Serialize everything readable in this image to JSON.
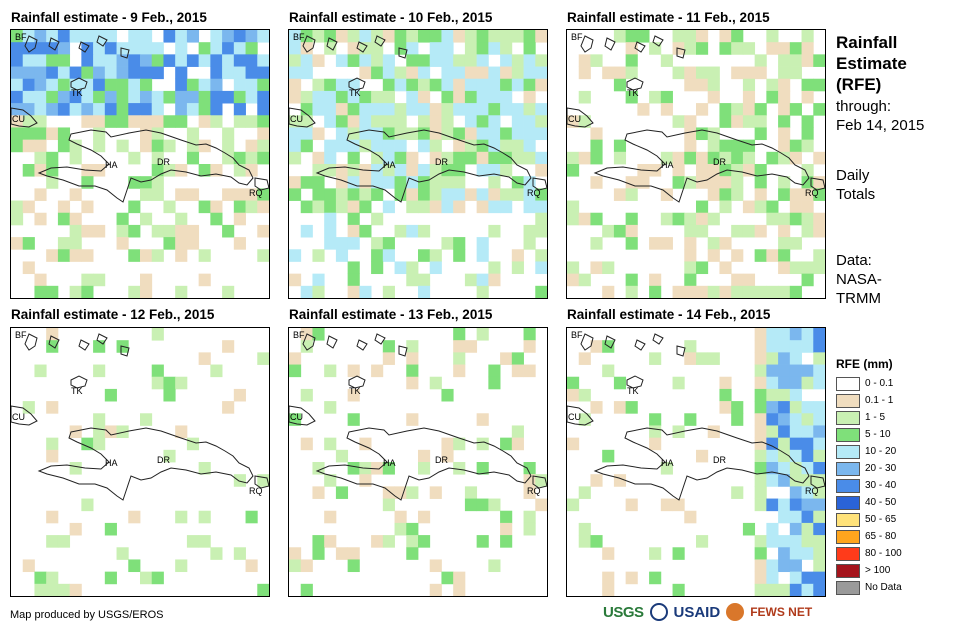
{
  "panels": [
    {
      "title": "Rainfall estimate - 9 Feb., 2015",
      "rain_intensity": "heavy-north",
      "dominant_classes": [
        "1 - 5",
        "5 - 10",
        "10 - 20",
        "20 - 30",
        "30 - 40"
      ]
    },
    {
      "title": "Rainfall estimate - 10 Feb., 2015",
      "rain_intensity": "widespread",
      "dominant_classes": [
        "1 - 5",
        "5 - 10",
        "10 - 20"
      ]
    },
    {
      "title": "Rainfall estimate - 11 Feb., 2015",
      "rain_intensity": "moderate",
      "dominant_classes": [
        "0.1 - 1",
        "1 - 5",
        "5 - 10"
      ]
    },
    {
      "title": "Rainfall estimate - 12 Feb., 2015",
      "rain_intensity": "light",
      "dominant_classes": [
        "0.1 - 1",
        "1 - 5"
      ]
    },
    {
      "title": "Rainfall estimate - 13 Feb., 2015",
      "rain_intensity": "light-scattered",
      "dominant_classes": [
        "0.1 - 1",
        "1 - 5",
        "5 - 10"
      ]
    },
    {
      "title": "Rainfall estimate - 14 Feb., 2015",
      "rain_intensity": "east-band",
      "dominant_classes": [
        "1 - 5",
        "5 - 10",
        "10 - 20",
        "20 - 30",
        "30 - 40"
      ]
    }
  ],
  "map_labels": {
    "bf": "BF",
    "tk": "TK",
    "cu": "CU",
    "ha": "HA",
    "dr": "DR",
    "rq": "RQ"
  },
  "side": {
    "title_lines": [
      "Rainfall",
      "Estimate",
      "(RFE)"
    ],
    "through": "through:",
    "date": "Feb 14, 2015",
    "daily": "Daily",
    "totals": "Totals",
    "data_label": "Data:",
    "source_1": "NASA-",
    "source_2": "TRMM"
  },
  "legend": {
    "title": "RFE (mm)",
    "items": [
      {
        "label": "0 - 0.1",
        "color": "#ffffff"
      },
      {
        "label": "0.1 - 1",
        "color": "#f0ddbf"
      },
      {
        "label": "1 - 5",
        "color": "#c9f0b3"
      },
      {
        "label": "5 - 10",
        "color": "#7fe07a"
      },
      {
        "label": "10 - 20",
        "color": "#b5eaf7"
      },
      {
        "label": "20 - 30",
        "color": "#7bb7ee"
      },
      {
        "label": "30 - 40",
        "color": "#4a8ce8"
      },
      {
        "label": "40 - 50",
        "color": "#2a63d8"
      },
      {
        "label": "50 - 65",
        "color": "#ffe27a"
      },
      {
        "label": "65 - 80",
        "color": "#ffa51e"
      },
      {
        "label": "80 - 100",
        "color": "#ff3b1a"
      },
      {
        "label": "> 100",
        "color": "#a5141c"
      },
      {
        "label": "No Data",
        "color": "#9a9a9a"
      }
    ]
  },
  "footer": "Map produced by USGS/EROS",
  "logos": {
    "usgs": "USGS",
    "usaid": "USAID",
    "fews": "FEWS NET"
  }
}
